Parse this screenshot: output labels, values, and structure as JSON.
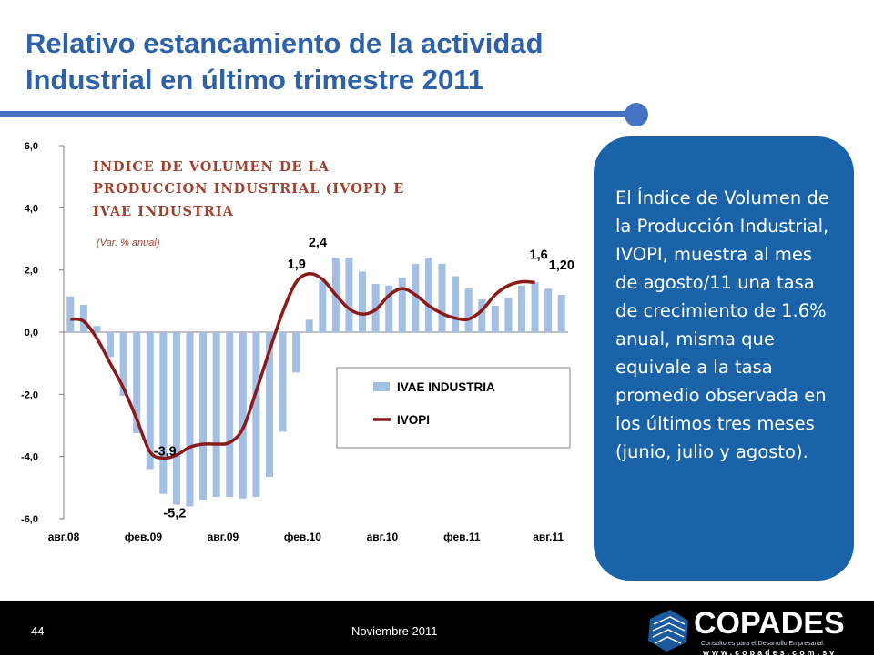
{
  "slide": {
    "title_line1": "Relativo estancamiento de la actividad",
    "title_line2": "Industrial en último trimestre 2011",
    "callout_text": "El Índice de Volumen de la Producción Industrial, IVOPI, muestra al mes de agosto/11 una tasa de crecimiento de 1.6% anual, misma que equivale a la tasa promedio observada en los últimos tres meses (junio, julio y agosto).",
    "page_number": "44",
    "footer_date": "Noviembre 2011",
    "logo_name": "COPADES",
    "logo_tagline": "Consultores para el Desarrollo Empresarial.",
    "logo_website": "www.copades.com.sv"
  },
  "colors": {
    "title": "#2e62a8",
    "rule": "#4473c4",
    "bar": "#a3bfe3",
    "line": "#8b1a1a",
    "callout_bg": "#1a63a8",
    "inner_title": "#a0412d"
  },
  "chart_data": {
    "type": "bar",
    "title": "INDICE DE VOLUMEN DE LA PRODUCCION INDUSTRIAL (IVOPI) E IVAE INDUSTRIA",
    "title_lines": [
      "INDICE DE VOLUMEN DE LA",
      "PRODUCCION INDUSTRIAL (IVOPI) E",
      "IVAE INDUSTRIA"
    ],
    "subtitle": "(Var. % anual)",
    "xlabel": "",
    "ylabel": "",
    "ylim": [
      -6,
      6
    ],
    "y_ticks": [
      "6,0",
      "4,0",
      "2,0",
      "0,0",
      "-2,0",
      "-4,0",
      "-6,0"
    ],
    "x_tick_labels": [
      "авг.08",
      "фев.09",
      "авг.09",
      "фев.10",
      "авг.10",
      "фев.11",
      "авг.11"
    ],
    "x_tick_indices": [
      0,
      6,
      12,
      18,
      24,
      30,
      36
    ],
    "legend_position": "lower-right",
    "grid": false,
    "series": [
      {
        "name": "IVAE INDUSTRIA",
        "kind": "bar",
        "values": [
          1.15,
          0.88,
          0.2,
          -0.8,
          -2.05,
          -3.25,
          -4.4,
          -5.2,
          -5.55,
          -5.6,
          -5.4,
          -5.3,
          -5.3,
          -5.35,
          -5.3,
          -4.65,
          -3.2,
          -1.3,
          0.4,
          1.65,
          2.4,
          2.4,
          1.95,
          1.55,
          1.5,
          1.75,
          2.2,
          2.4,
          2.2,
          1.8,
          1.4,
          1.05,
          0.85,
          1.1,
          1.5,
          1.6,
          1.4,
          1.2
        ]
      },
      {
        "name": "IVOPI",
        "kind": "line",
        "values": [
          0.42,
          0.35,
          -0.2,
          -1.0,
          -1.8,
          -2.8,
          -3.85,
          -4.05,
          -3.95,
          -3.7,
          -3.6,
          -3.6,
          -3.55,
          -3.1,
          -1.9,
          -0.6,
          0.65,
          1.6,
          1.88,
          1.7,
          1.2,
          0.75,
          0.58,
          0.72,
          1.18,
          1.4,
          1.2,
          0.85,
          0.6,
          0.45,
          0.42,
          0.7,
          1.2,
          1.5,
          1.62,
          1.6
        ]
      }
    ],
    "data_labels": [
      {
        "text": "-3,9",
        "series": "IVOPI",
        "index": 6
      },
      {
        "text": "-5,2",
        "series": "IVAE INDUSTRIA",
        "index": 7
      },
      {
        "text": "2,4",
        "series": "IVAE INDUSTRIA",
        "index": 20
      },
      {
        "text": "1,9",
        "series": "IVOPI",
        "index": 18
      },
      {
        "text": "1,6",
        "series": "IVOPI",
        "index": 35
      },
      {
        "text": "1,20",
        "series": "IVAE INDUSTRIA",
        "index": 37
      }
    ]
  }
}
